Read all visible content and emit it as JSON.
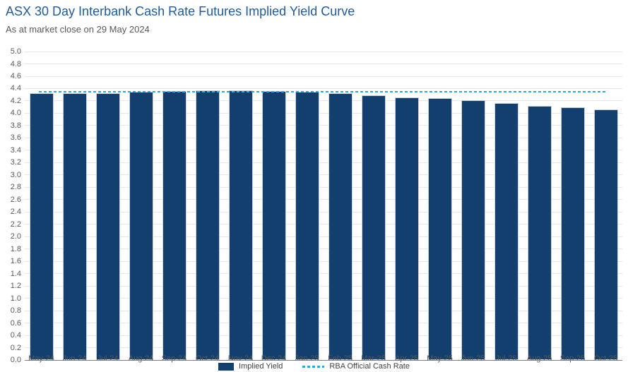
{
  "header": {
    "title": "ASX 30 Day Interbank Cash Rate Futures Implied Yield Curve",
    "subtitle": "As at market close on 29 May 2024"
  },
  "chart_data": {
    "type": "bar",
    "title": "ASX 30 Day Interbank Cash Rate Futures Implied Yield Curve",
    "subtitle": "As at market close on 29 May 2024",
    "categories": [
      "May-24",
      "Jun-24",
      "Jul-24",
      "Aug-24",
      "Sep-24",
      "Oct-24",
      "Nov-24",
      "Dec-24",
      "Jan-25",
      "Feb-25",
      "Mar-25",
      "Apr-25",
      "May-25",
      "Jun-25",
      "Jul-25",
      "Aug-25",
      "Sep-25",
      "Oct-25"
    ],
    "series": [
      {
        "name": "Implied Yield",
        "type": "bar",
        "color": "#123F6D",
        "values": [
          4.32,
          4.32,
          4.33,
          4.35,
          4.36,
          4.37,
          4.37,
          4.36,
          4.35,
          4.32,
          4.29,
          4.26,
          4.24,
          4.21,
          4.17,
          4.12,
          4.1,
          4.06
        ]
      },
      {
        "name": "RBA Official Cash Rate",
        "type": "line",
        "line_style": "dashed",
        "color": "#29ABE2",
        "value": 4.35
      }
    ],
    "ylim": [
      0,
      5
    ],
    "ytick_step": 0.2,
    "ytick_labels": [
      "0.0",
      "0.2",
      "0.4",
      "0.6",
      "0.8",
      "1.0",
      "1.2",
      "1.4",
      "1.6",
      "1.8",
      "2.0",
      "2.2",
      "2.4",
      "2.6",
      "2.8",
      "3.0",
      "3.2",
      "3.4",
      "3.6",
      "3.8",
      "4.0",
      "4.2",
      "4.4",
      "4.6",
      "4.8",
      "5.0"
    ],
    "grid": "horizontal",
    "legend_position": "bottom-center"
  },
  "colors": {
    "title": "#215C98",
    "subtitle": "#595959",
    "axis_text": "#595959",
    "gridline": "#E7E7E7",
    "axis_line": "#808080",
    "bar": "#123F6D",
    "rba_line": "#29ABE2",
    "legend_text": "#404040",
    "background": "#FFFFFF"
  }
}
